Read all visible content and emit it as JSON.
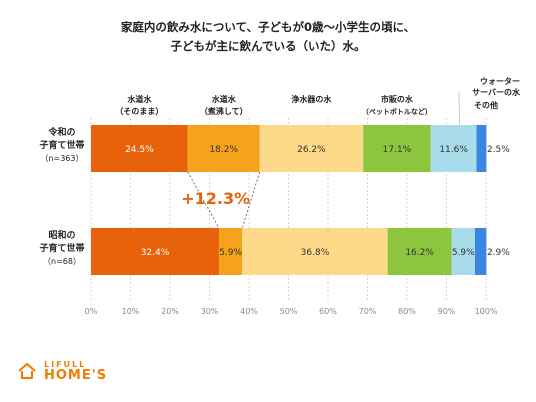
{
  "title_lines": [
    "家庭内の飲み水について、子どもが0歳〜小学生の頃に、",
    "子どもが主に飲んでいる（いた）水。"
  ],
  "chart_data": {
    "type": "bar",
    "orientation": "horizontal",
    "stacked": true,
    "title": "家庭内の飲み水について、子どもが0歳〜小学生の頃に、子どもが主に飲んでいる（いた）水。",
    "categories": [
      {
        "label_lines": [
          "令和の",
          "子育て世帯",
          "（n=363）"
        ]
      },
      {
        "label_lines": [
          "昭和の",
          "子育て世帯",
          "（n=68）"
        ]
      }
    ],
    "series": [
      {
        "name": "水道水（そのまま）",
        "header_lines": [
          "水道水",
          "（そのまま）"
        ],
        "color": "#e8620c",
        "values": [
          24.5,
          32.4
        ],
        "labels": [
          "24.5%",
          "32.4%"
        ],
        "label_color": "#ffffff"
      },
      {
        "name": "水道水（煮沸して）",
        "header_lines": [
          "水道水",
          "（煮沸して）"
        ],
        "color": "#f5a31a",
        "values": [
          18.2,
          5.9
        ],
        "labels": [
          "18.2%",
          "5.9%"
        ],
        "label_color": "#333333"
      },
      {
        "name": "浄水器の水",
        "header_lines": [
          "浄水器の水"
        ],
        "color": "#fdd98a",
        "values": [
          26.2,
          36.8
        ],
        "labels": [
          "26.2%",
          "36.8%"
        ],
        "label_color": "#333333"
      },
      {
        "name": "市販の水（ペットボトルなど）",
        "header_lines": [
          "市販の水",
          "（ペットボトルなど）"
        ],
        "color": "#8cc63f",
        "values": [
          17.1,
          16.2
        ],
        "labels": [
          "17.1%",
          "16.2%"
        ],
        "label_color": "#333333"
      },
      {
        "name": "ウォーターサーバーの水",
        "header_lines": [
          "ウォーター",
          "サーバーの水"
        ],
        "color": "#a8dcea",
        "values": [
          11.6,
          5.9
        ],
        "labels": [
          "11.6%",
          "5.9%"
        ],
        "label_color": "#333333"
      },
      {
        "name": "その他",
        "header_lines": [
          "その他"
        ],
        "color": "#3a86e0",
        "values": [
          2.5,
          2.9
        ],
        "labels": [
          "2.5%",
          "2.9%"
        ],
        "label_color": "#333333"
      }
    ],
    "xlim": [
      0,
      100
    ],
    "x_ticks": [
      "0%",
      "10%",
      "20%",
      "30%",
      "40%",
      "50%",
      "60%",
      "70%",
      "80%",
      "90%",
      "100%"
    ],
    "grid": true,
    "annotation": {
      "text": "+12.3%",
      "color": "#e8620c"
    }
  },
  "logo": {
    "top": "LIFULL",
    "main": "HOME'S",
    "color": "#f07d00"
  }
}
